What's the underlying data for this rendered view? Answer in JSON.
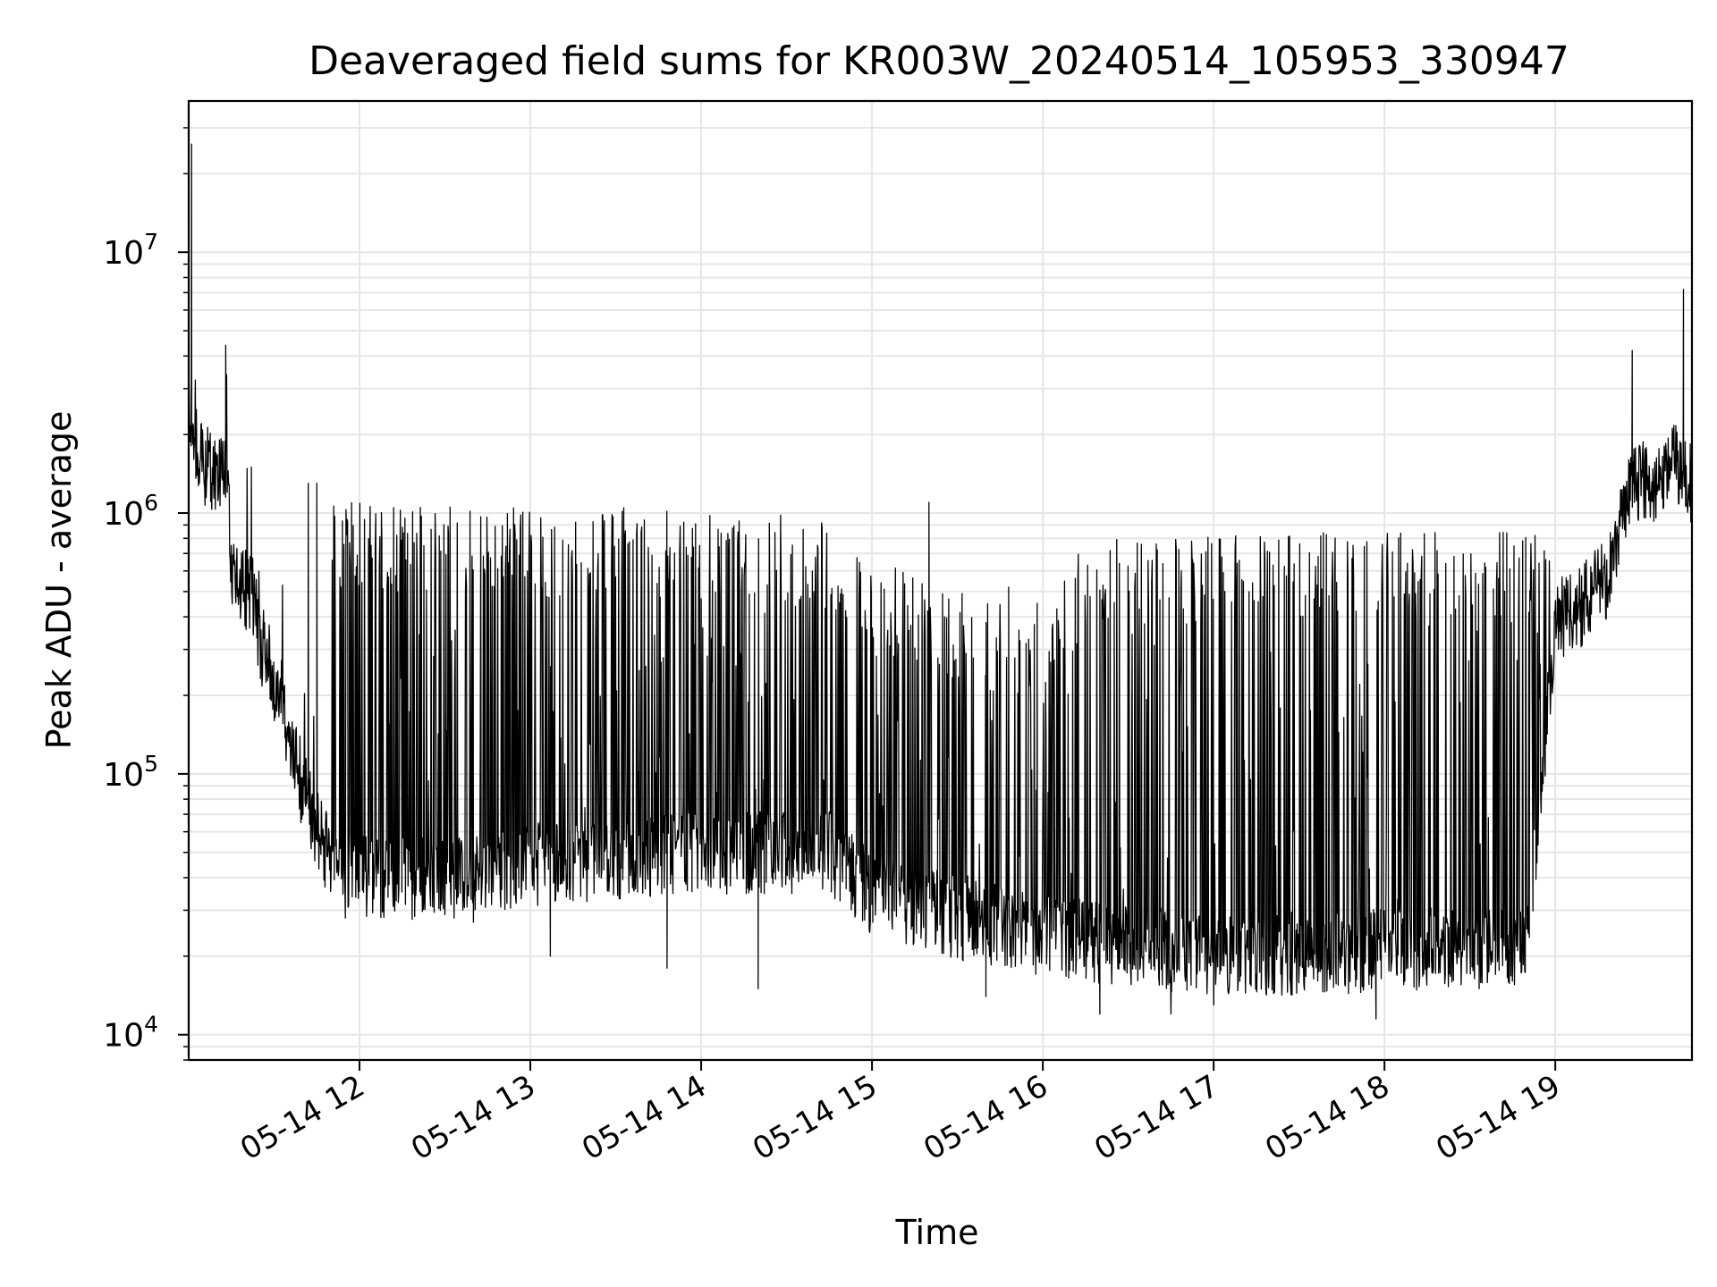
{
  "chart_data": {
    "type": "line",
    "title": "Deaveraged field sums for KR003W_20240514_105953_330947",
    "xlabel": "Time",
    "ylabel": "Peak ADU - average",
    "yscale": "log",
    "grid": true,
    "line_color": "#000000",
    "grid_color": "#e6e6e6",
    "xlim": [
      "2024-05-14 11:00",
      "2024-05-14 19:48"
    ],
    "ylim": [
      8000,
      38000000
    ],
    "x_ticks": [
      {
        "time": "2024-05-14 12:00",
        "label": "05-14 12"
      },
      {
        "time": "2024-05-14 13:00",
        "label": "05-14 13"
      },
      {
        "time": "2024-05-14 14:00",
        "label": "05-14 14"
      },
      {
        "time": "2024-05-14 15:00",
        "label": "05-14 15"
      },
      {
        "time": "2024-05-14 16:00",
        "label": "05-14 16"
      },
      {
        "time": "2024-05-14 17:00",
        "label": "05-14 17"
      },
      {
        "time": "2024-05-14 18:00",
        "label": "05-14 18"
      },
      {
        "time": "2024-05-14 19:00",
        "label": "05-14 19"
      }
    ],
    "y_ticks": [
      {
        "value": 10000,
        "base": "10",
        "exp": "4"
      },
      {
        "value": 100000,
        "base": "10",
        "exp": "5"
      },
      {
        "value": 1000000,
        "base": "10",
        "exp": "6"
      },
      {
        "value": 10000000,
        "base": "10",
        "exp": "7"
      }
    ],
    "series": [
      {
        "baseline": [
          {
            "time": "2024-05-14 11:00",
            "value": 3000000
          },
          {
            "time": "2024-05-14 11:01",
            "value": 2000000
          },
          {
            "time": "2024-05-14 11:05",
            "value": 1500000
          },
          {
            "time": "2024-05-14 11:14",
            "value": 1400000
          },
          {
            "time": "2024-05-14 11:15",
            "value": 550000
          },
          {
            "time": "2024-05-14 11:22",
            "value": 500000
          },
          {
            "time": "2024-05-14 11:26",
            "value": 300000
          },
          {
            "time": "2024-05-14 11:32",
            "value": 200000
          },
          {
            "time": "2024-05-14 11:37",
            "value": 120000
          },
          {
            "time": "2024-05-14 11:41",
            "value": 80000
          },
          {
            "time": "2024-05-14 11:45",
            "value": 60000
          },
          {
            "time": "2024-05-14 11:50",
            "value": 45000
          },
          {
            "time": "2024-05-14 12:00",
            "value": 40000
          },
          {
            "time": "2024-05-14 12:15",
            "value": 40000
          },
          {
            "time": "2024-05-14 12:40",
            "value": 40000
          },
          {
            "time": "2024-05-14 13:00",
            "value": 45000
          },
          {
            "time": "2024-05-14 14:00",
            "value": 50000
          },
          {
            "time": "2024-05-14 14:45",
            "value": 50000
          },
          {
            "time": "2024-05-14 15:00",
            "value": 35000
          },
          {
            "time": "2024-05-14 15:30",
            "value": 28000
          },
          {
            "time": "2024-05-14 16:00",
            "value": 24000
          },
          {
            "time": "2024-05-14 17:00",
            "value": 20000
          },
          {
            "time": "2024-05-14 18:00",
            "value": 21000
          },
          {
            "time": "2024-05-14 18:50",
            "value": 22000
          },
          {
            "time": "2024-05-14 19:00",
            "value": 380000
          },
          {
            "time": "2024-05-14 19:10",
            "value": 450000
          },
          {
            "time": "2024-05-14 19:20",
            "value": 600000
          },
          {
            "time": "2024-05-14 19:27",
            "value": 1400000
          },
          {
            "time": "2024-05-14 19:35",
            "value": 1200000
          },
          {
            "time": "2024-05-14 19:40",
            "value": 1600000
          },
          {
            "time": "2024-05-14 19:48",
            "value": 1300000
          }
        ],
        "envelope": [
          {
            "time": "2024-05-14 11:50",
            "value": 1150000
          },
          {
            "time": "2024-05-14 12:30",
            "value": 1100000
          },
          {
            "time": "2024-05-14 13:00",
            "value": 1050000
          },
          {
            "time": "2024-05-14 14:00",
            "value": 1050000
          },
          {
            "time": "2024-05-14 14:45",
            "value": 950000
          },
          {
            "time": "2024-05-14 15:00",
            "value": 700000
          },
          {
            "time": "2024-05-14 15:30",
            "value": 500000
          },
          {
            "time": "2024-05-14 16:00",
            "value": 400000
          },
          {
            "time": "2024-05-14 16:15",
            "value": 800000
          },
          {
            "time": "2024-05-14 17:00",
            "value": 850000
          },
          {
            "time": "2024-05-14 18:00",
            "value": 850000
          },
          {
            "time": "2024-05-14 18:58",
            "value": 850000
          }
        ],
        "spikes": [
          {
            "time": "2024-05-14 11:01",
            "value": 26000000
          },
          {
            "time": "2024-05-14 11:13",
            "value": 4400000
          },
          {
            "time": "2024-05-14 11:22",
            "value": 1500000
          },
          {
            "time": "2024-05-14 11:42",
            "value": 1300000
          },
          {
            "time": "2024-05-14 11:45",
            "value": 1300000
          },
          {
            "time": "2024-05-14 15:20",
            "value": 1100000
          },
          {
            "time": "2024-05-14 15:48",
            "value": 520000
          },
          {
            "time": "2024-05-14 15:58",
            "value": 450000
          },
          {
            "time": "2024-05-14 19:27",
            "value": 4200000
          },
          {
            "time": "2024-05-14 19:45",
            "value": 7200000
          }
        ],
        "minima": [
          {
            "time": "2024-05-14 11:55",
            "value": 28000
          },
          {
            "time": "2024-05-14 12:40",
            "value": 27000
          },
          {
            "time": "2024-05-14 13:07",
            "value": 20000
          },
          {
            "time": "2024-05-14 13:48",
            "value": 18000
          },
          {
            "time": "2024-05-14 14:20",
            "value": 15000
          },
          {
            "time": "2024-05-14 15:40",
            "value": 14000
          },
          {
            "time": "2024-05-14 16:20",
            "value": 12000
          },
          {
            "time": "2024-05-14 16:45",
            "value": 12000
          },
          {
            "time": "2024-05-14 17:00",
            "value": 13000
          },
          {
            "time": "2024-05-14 17:57",
            "value": 11500
          }
        ]
      }
    ]
  }
}
